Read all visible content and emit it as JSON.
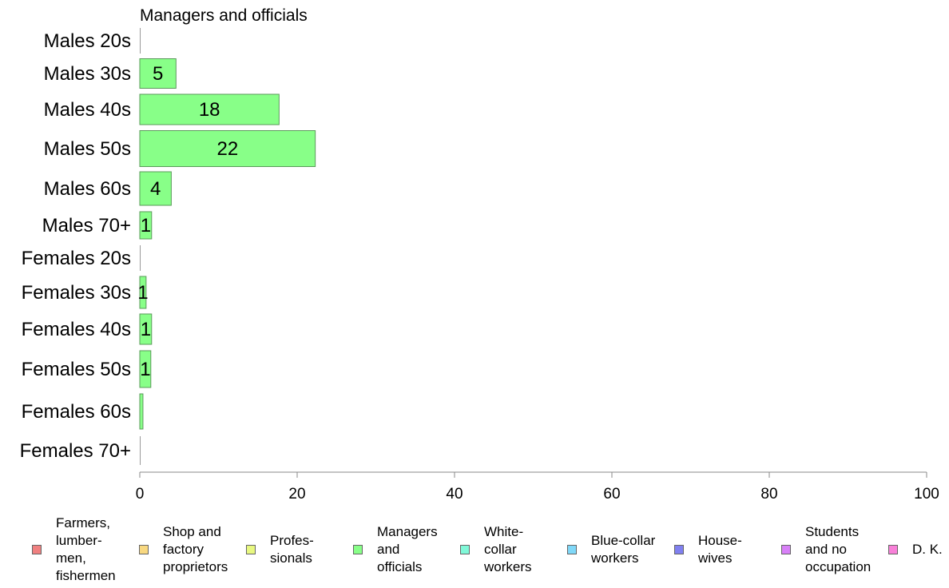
{
  "chart_data": {
    "type": "bar",
    "orientation": "horizontal",
    "title": "Managers and officials",
    "categories": [
      "Males 20s",
      "Males 30s",
      "Males 40s",
      "Males 50s",
      "Males 60s",
      "Males 70+",
      "Females 20s",
      "Females 30s",
      "Females 40s",
      "Females 50s",
      "Females 60s",
      "Females 70+"
    ],
    "series": [
      {
        "name": "Managers and officials",
        "color": "#88ff88",
        "values": [
          0,
          4.6,
          17.7,
          22.3,
          4.0,
          1.5,
          0,
          0.8,
          1.5,
          1.4,
          0.4,
          0
        ],
        "labels": [
          "",
          "5",
          "18",
          "22",
          "4",
          "1",
          "",
          "1",
          "1",
          "1",
          "",
          ""
        ]
      }
    ],
    "xlim": [
      0,
      100
    ],
    "xticks": [
      "0",
      "20",
      "40",
      "60",
      "80",
      "100"
    ],
    "grid": false,
    "legend_position": "bottom"
  },
  "legend": [
    {
      "label": "Farmers,\nlumber-\nmen,\nfishermen",
      "color": "#f08080"
    },
    {
      "label": "Shop and\nfactory\nproprietors",
      "color": "#f8d880"
    },
    {
      "label": "Profes-\nsionals",
      "color": "#e8f880"
    },
    {
      "label": "Managers\nand\nofficials",
      "color": "#88ff88"
    },
    {
      "label": "White-\ncollar\nworkers",
      "color": "#80f8d8"
    },
    {
      "label": "Blue-collar\nworkers",
      "color": "#80d8f8"
    },
    {
      "label": "House-\nwives",
      "color": "#8080f0"
    },
    {
      "label": "Students\nand no\noccupation",
      "color": "#d880f8"
    },
    {
      "label": "D. K.",
      "color": "#f880d8"
    }
  ]
}
